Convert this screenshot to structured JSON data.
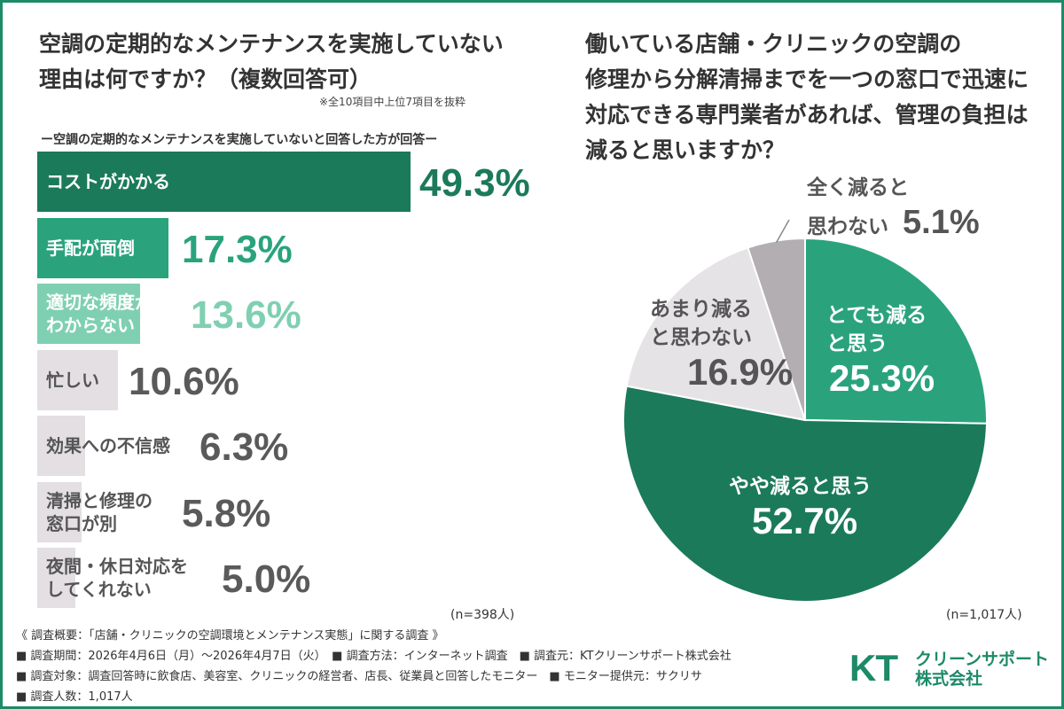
{
  "left": {
    "title_line1": "空調の定期的なメンテナンスを実施していない",
    "title_line2": "理由は何ですか？（複数回答可）",
    "note": "※全10項目中上位7項目を抜粋",
    "subtitle": "ー空調の定期的なメンテナンスを実施していないと回答した方が回答ー",
    "n": "(n=398人)"
  },
  "right": {
    "title_line1": "働いている店舗・クリニックの空調の",
    "title_line2": "修理から分解清掃までを一つの窓口で迅速に",
    "title_line3": "対応できる専門業者があれば、管理の負担は",
    "title_line4": "減ると思いますか？",
    "n": "(n=1,017人)"
  },
  "chart_data": [
    {
      "type": "bar",
      "orientation": "horizontal",
      "categories": [
        [
          "コストがかかる"
        ],
        [
          "手配が面倒"
        ],
        [
          "適切な頻度が",
          "わからない"
        ],
        [
          "忙しい"
        ],
        [
          "効果への不信感"
        ],
        [
          "清掃と修理の",
          "窓口が別"
        ],
        [
          "夜間・休日対応を",
          "してくれない"
        ]
      ],
      "values": [
        49.3,
        17.3,
        13.6,
        10.6,
        6.3,
        5.8,
        5.0
      ],
      "value_labels": [
        "49.3%",
        "17.3%",
        "13.6%",
        "10.6%",
        "6.3%",
        "5.8%",
        "5.0%"
      ],
      "colors": [
        "#1b7a5a",
        "#2aa37d",
        "#7fd0b2",
        "#e3dfe3",
        "#e3dfe3",
        "#e3dfe3",
        "#e3dfe3"
      ],
      "label_colors": [
        "#ffffff",
        "#ffffff",
        "#ffffff",
        "#555555",
        "#555555",
        "#555555",
        "#555555"
      ],
      "value_colors": [
        "#1b7a5a",
        "#2aa37d",
        "#7fd0b2",
        "#5a5a5a",
        "#5a5a5a",
        "#5a5a5a",
        "#5a5a5a"
      ],
      "xlim": [
        0,
        50
      ]
    },
    {
      "type": "pie",
      "labels": [
        [
          "とても減る",
          "と思う"
        ],
        [
          "やや減ると思う"
        ],
        [
          "あまり減る",
          "と思わない"
        ],
        [
          "全く減ると",
          "思わない"
        ]
      ],
      "values": [
        25.3,
        52.7,
        16.9,
        5.1
      ],
      "value_labels": [
        "25.3%",
        "52.7%",
        "16.9%",
        "5.1%"
      ],
      "colors": [
        "#2aa37d",
        "#1b7a5a",
        "#e6e3e6",
        "#b2aeb2"
      ],
      "text_colors": [
        "#ffffff",
        "#ffffff",
        "#555555",
        "#555555"
      ]
    }
  ],
  "footer": {
    "line1": "《 調査概要：「店舗・クリニックの空調環境とメンテナンス実態」に関する調査 》",
    "line2": "■ 調査期間：2026年4月6日（月）～2026年4月7日（火）　■ 調査方法：インターネット調査　■ 調査元：KTクリーンサポート株式会社",
    "line3": "■ 調査対象：調査回答時に飲食店、美容室、クリニックの経営者、店長、従業員と回答したモニター　■ モニター提供元：サクリサ",
    "line4": "■ 調査人数：1,017人"
  },
  "logo": {
    "mark": "KT",
    "line1": "クリーンサポート",
    "line2": "株式会社"
  }
}
